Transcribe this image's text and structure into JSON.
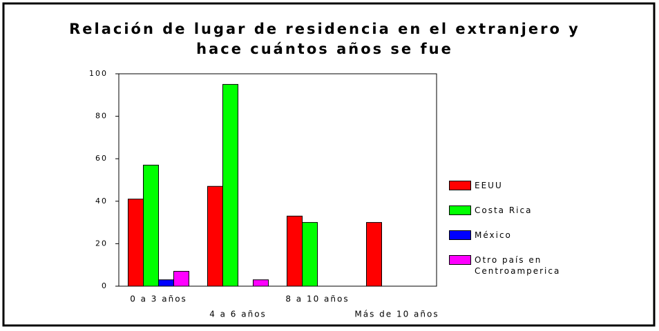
{
  "chart_data": {
    "type": "bar",
    "title": [
      "Relación de lugar de residencia en el extranjero y",
      "hace cuántos años se fue"
    ],
    "categories": [
      "0 a 3 años",
      "4 a 6 años",
      "8 a 10 años",
      "Más de 10 años"
    ],
    "series": [
      {
        "name": "EEUU",
        "color": "#ff0000",
        "values": [
          41,
          47,
          33,
          30
        ]
      },
      {
        "name": "Costa Rica",
        "color": "#00ff00",
        "values": [
          57,
          95,
          30,
          0
        ]
      },
      {
        "name": "México",
        "color": "#0000ff",
        "values": [
          3,
          0,
          0,
          0
        ]
      },
      {
        "name": "Otro país en Centroamperica",
        "color": "#ff00ff",
        "values": [
          7,
          3,
          0,
          0
        ]
      }
    ],
    "ylim": [
      0,
      100
    ],
    "yticks": [
      0,
      20,
      40,
      60,
      80,
      100
    ],
    "grid": false,
    "legend": "right"
  }
}
